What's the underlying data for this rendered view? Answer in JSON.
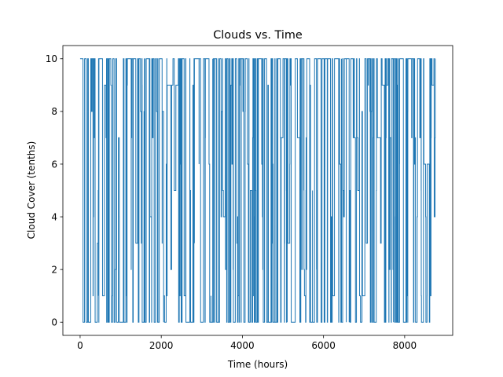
{
  "chart_data": {
    "type": "line",
    "title": "Clouds vs. Time",
    "xlabel": "Time (hours)",
    "ylabel": "Cloud Cover (tenths)",
    "xlim": [
      -425,
      9184
    ],
    "ylim": [
      -0.5,
      10.5
    ],
    "xticks": [
      0,
      2000,
      4000,
      6000,
      8000
    ],
    "yticks": [
      0,
      2,
      4,
      6,
      8,
      10
    ],
    "grid": false,
    "legend": "none",
    "series": [
      {
        "color": "#1f77b4",
        "x_range": [
          0,
          8759
        ],
        "y_range": [
          0,
          10
        ],
        "x_step": 1,
        "note_values": "hourly cloud cover values oscillating between 0 and 10 tenths over 8760 hours"
      }
    ]
  }
}
